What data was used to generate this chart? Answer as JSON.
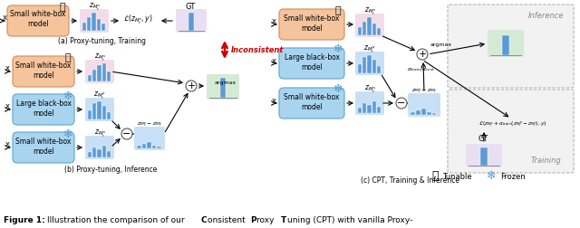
{
  "bg_color": "#ffffff",
  "orange_box_color": "#f5c49c",
  "orange_box_edge": "#d4956a",
  "blue_box_color": "#a8d4f0",
  "blue_box_edge": "#6aabcf",
  "pink_bg": "#f2dce8",
  "green_bg": "#d5ead4",
  "purple_bg": "#e8e0f2",
  "blue_bg": "#c8e0f5",
  "hist_color": "#5b9bd5",
  "red_color": "#cc0000",
  "gray_color": "#888888",
  "section_a_label": "(a) Proxy-tuning, Training",
  "section_b_label": "(b) Proxy-tuning, Inference",
  "section_c_label": "(c) CPT, Training & Inference",
  "tunable_label": "Tunable",
  "frozen_label": "Frozen",
  "inference_label": "Inference",
  "training_label": "Training"
}
